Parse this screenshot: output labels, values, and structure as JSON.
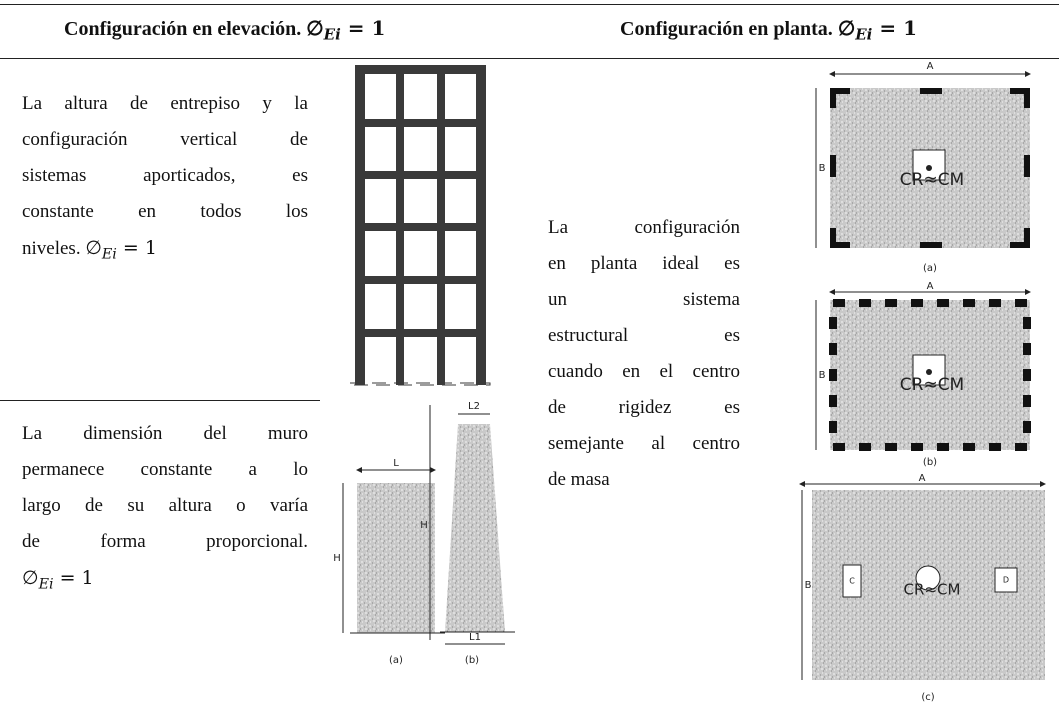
{
  "header": {
    "left": {
      "text": "Configuración en elevación.",
      "symbol": "∅",
      "subscript": "Ei",
      "equals": "= 1"
    },
    "right": {
      "text": "Configuración en planta.",
      "symbol": "∅",
      "subscript": "Ei",
      "equals": "= 1"
    }
  },
  "rows": [
    {
      "lines": [
        "La altura de entrepiso y la",
        "configuración vertical de",
        "sistemas aporticados, es",
        "constante en todos los",
        "niveles."
      ],
      "formula": {
        "symbol": "∅",
        "subscript": "Ei",
        "equals": "= 1"
      }
    },
    {
      "lines": [
        "La dimensión del muro",
        "permanece constante a lo",
        "largo de su altura o varía",
        "de forma proporcional."
      ],
      "formula": {
        "symbol": "∅",
        "subscript": "Ei",
        "equals": "= 1"
      }
    }
  ],
  "middle": {
    "lines": [
      "La configuración",
      "en planta ideal es",
      "un sistema",
      "estructural es",
      "cuando en el centro",
      "de rigidez es",
      "semejante al centro",
      "de masa"
    ]
  },
  "walls": {
    "a": {
      "top": "L",
      "side": "H",
      "caption": "(a)"
    },
    "b": {
      "top": "L2",
      "side": "H",
      "bottom": "L1",
      "caption": "(b)"
    }
  },
  "plans": [
    {
      "width": "A",
      "height": "B",
      "center": "CR≈CM",
      "caption": "(a)"
    },
    {
      "width": "A",
      "height": "B",
      "center": "CR≈CM",
      "caption": "(b)"
    },
    {
      "width": "A",
      "height": "B",
      "center": "CR≈CM",
      "caption": "(c)",
      "left_opening": "C",
      "right_opening": "D"
    }
  ]
}
